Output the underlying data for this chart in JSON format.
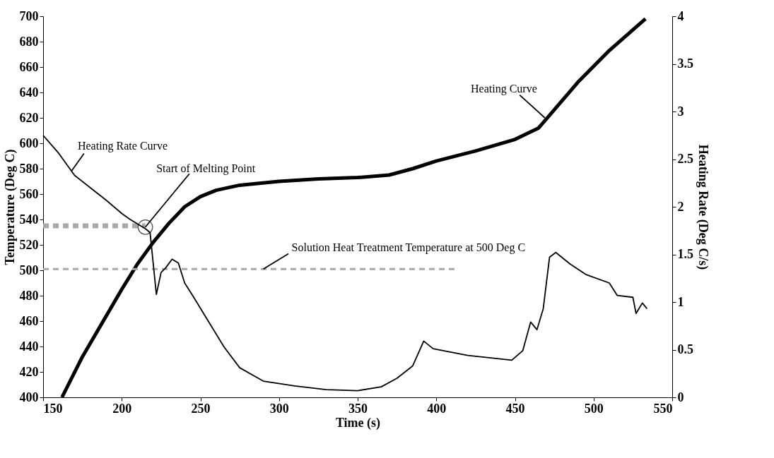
{
  "chart_data": {
    "type": "line",
    "xlabel": "Time (s)",
    "ylabel": "Temperature (Deg C)",
    "y2label": "Heating Rate (Deg C/s)",
    "xlim": [
      150,
      550
    ],
    "xticks": [
      150,
      200,
      250,
      300,
      350,
      400,
      450,
      500,
      550
    ],
    "ylim": [
      400,
      700
    ],
    "yticks": [
      400,
      420,
      440,
      460,
      480,
      500,
      520,
      540,
      560,
      580,
      600,
      620,
      640,
      660,
      680,
      700
    ],
    "y2lim": [
      0,
      4
    ],
    "y2ticks": [
      0,
      0.5,
      1,
      1.5,
      2,
      2.5,
      3,
      3.5,
      4
    ],
    "grid": false,
    "series": [
      {
        "color": "#000000",
        "line_style": "solid",
        "x": [
          162,
          175,
          200,
          210,
          220,
          230,
          240,
          250,
          260,
          275,
          300,
          325,
          350,
          370,
          385,
          400,
          425,
          450,
          465,
          472,
          490,
          510,
          533
        ],
        "values": [
          400,
          432,
          485,
          505,
          522,
          537,
          550,
          558,
          563,
          567,
          570,
          572,
          573,
          575,
          580,
          586,
          594,
          603,
          612,
          622,
          648,
          673,
          698
        ]
      },
      {
        "color": "#000000",
        "line_style": "solid",
        "axis": "y2",
        "x": [
          150,
          160,
          170,
          180,
          190,
          200,
          205,
          215,
          218,
          222,
          225,
          228,
          232,
          236,
          240,
          245,
          255,
          265,
          275,
          290,
          310,
          330,
          350,
          365,
          375,
          385,
          392,
          398,
          420,
          448,
          455,
          460,
          464,
          468,
          472,
          476,
          485,
          495,
          510,
          515,
          525,
          527,
          531,
          534
        ],
        "values": [
          2.75,
          2.56,
          2.33,
          2.2,
          2.07,
          1.93,
          1.87,
          1.77,
          1.73,
          1.08,
          1.31,
          1.36,
          1.45,
          1.41,
          1.2,
          1.07,
          0.8,
          0.53,
          0.31,
          0.17,
          0.12,
          0.08,
          0.07,
          0.11,
          0.2,
          0.33,
          0.59,
          0.51,
          0.44,
          0.39,
          0.49,
          0.79,
          0.71,
          0.93,
          1.47,
          1.52,
          1.4,
          1.29,
          1.2,
          1.07,
          1.05,
          0.88,
          0.99,
          0.93
        ]
      },
      {
        "color": "#a8a8a8",
        "line_style": "dashed",
        "x": [
          150,
          215
        ],
        "values": [
          535,
          535
        ]
      },
      {
        "color": "#a8a8a8",
        "line_style": "dashed",
        "x": [
          150,
          413
        ],
        "values": [
          501,
          501
        ]
      }
    ],
    "annotations": [
      {
        "text": "Heating Rate Curve",
        "x": 168,
        "y": 578
      },
      {
        "text": "Start of Melting Point",
        "x": 215,
        "y": 534
      },
      {
        "text": "Solution Heat Treatment Temperature at 500 Deg C",
        "x": 290,
        "y": 501
      },
      {
        "text": "Heating Curve",
        "x": 469,
        "y": 620
      }
    ]
  }
}
